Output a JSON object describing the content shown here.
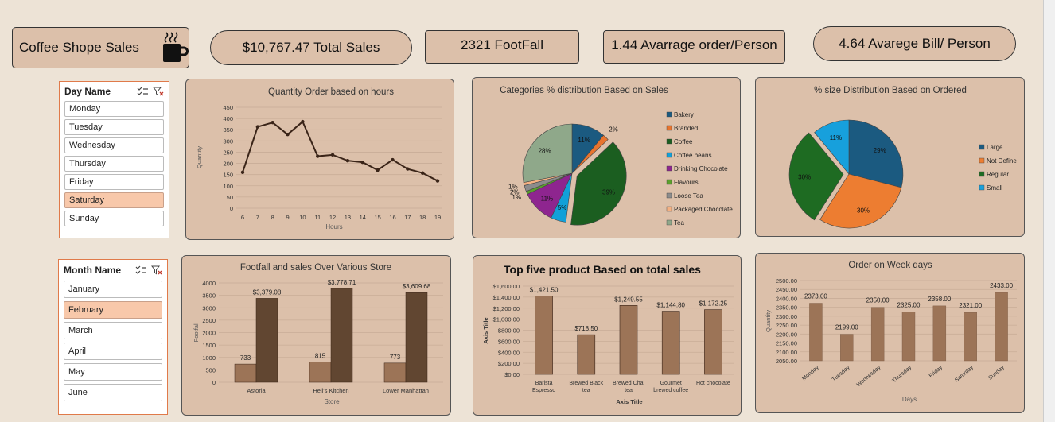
{
  "header": {
    "title": "Coffee Shope Sales",
    "total_sales": "$10,767.47 Total Sales",
    "footfall": "2321  FootFall",
    "avg_order": "1.44  Avarrage order/Person",
    "avg_bill": "4.64 Avarege Bill/ Person"
  },
  "slicer_day": {
    "title": "Day Name",
    "items": [
      "Monday",
      "Tuesday",
      "Wednesday",
      "Thursday",
      "Friday",
      "Saturday",
      "Sunday"
    ],
    "selected": "Saturday"
  },
  "slicer_month": {
    "title": "Month Name",
    "items": [
      "January",
      "February",
      "March",
      "April",
      "May",
      "June"
    ],
    "selected": "February"
  },
  "chart_data": [
    {
      "id": "hours",
      "type": "line",
      "title": "Quantity Order based on hours",
      "xlabel": "Hours",
      "ylabel": "Quantity",
      "x": [
        6,
        7,
        8,
        9,
        10,
        11,
        12,
        13,
        14,
        15,
        16,
        17,
        18,
        19
      ],
      "values": [
        160,
        363,
        382,
        329,
        386,
        232,
        238,
        212,
        205,
        170,
        216,
        175,
        157,
        122
      ],
      "ylim": [
        0,
        450
      ],
      "yticks": [
        0,
        50,
        100,
        150,
        200,
        250,
        300,
        350,
        400,
        450
      ],
      "color": "#3a2418"
    },
    {
      "id": "categories",
      "type": "pie",
      "title": "Categories % distribution Based on Sales",
      "legend_position": "right",
      "slices": [
        {
          "name": "Bakery",
          "value": 11,
          "label": "11%",
          "color": "#1b5a80"
        },
        {
          "name": "Branded",
          "value": 2,
          "label": "2%",
          "color": "#e8742e"
        },
        {
          "name": "Coffee",
          "value": 39,
          "label": "39%",
          "color": "#1b5e20"
        },
        {
          "name": "Coffee beans",
          "value": 5,
          "label": "5%",
          "color": "#12a0d8"
        },
        {
          "name": "Drinking Chocolate",
          "value": 11,
          "label": "11%",
          "color": "#8e258f"
        },
        {
          "name": "Flavours",
          "value": 1,
          "label": "1%",
          "color": "#5aa02c"
        },
        {
          "name": "Loose Tea",
          "value": 2,
          "label": "2%",
          "color": "#8c8c8c"
        },
        {
          "name": "Packaged Chocolate",
          "value": 1,
          "label": "1%",
          "color": "#f4b183"
        },
        {
          "name": "Tea",
          "value": 28,
          "label": "28%",
          "color": "#8fa88a"
        }
      ]
    },
    {
      "id": "size",
      "type": "pie",
      "title": "% size Distribution Based on Ordered",
      "legend_position": "right",
      "slices": [
        {
          "name": "Large",
          "value": 29,
          "label": "29%",
          "color": "#1b5a80"
        },
        {
          "name": "Not Define",
          "value": 30,
          "label": "30%",
          "color": "#ed7d31"
        },
        {
          "name": "Regular",
          "value": 30,
          "label": "30%",
          "color": "#1e6b22"
        },
        {
          "name": "Small",
          "value": 11,
          "label": "11%",
          "color": "#17a0dc"
        }
      ]
    },
    {
      "id": "store",
      "type": "bar",
      "title": "Footfall and sales Over Various Store",
      "xlabel": "Store",
      "ylabel": "Footfall",
      "categories": [
        "Astoria",
        "Hell's Kitchen",
        "Lower Manhattan"
      ],
      "series": [
        {
          "values": [
            733,
            815,
            773
          ],
          "labels": [
            "733",
            "815",
            "773"
          ],
          "color": "#9c7457"
        },
        {
          "values": [
            3379.08,
            3778.71,
            3609.68
          ],
          "labels": [
            "$3,379.08",
            "$3,778.71",
            "$3,609.68"
          ],
          "color": "#614631"
        }
      ],
      "ylim": [
        0,
        4000
      ],
      "yticks": [
        0,
        500,
        1000,
        1500,
        2000,
        2500,
        3000,
        3500,
        4000
      ]
    },
    {
      "id": "products",
      "type": "bar",
      "title": "Top five product Based on total sales",
      "xlabel": "Axis Title",
      "ylabel": "Axis Title",
      "categories": [
        [
          "Barista",
          "Espresso"
        ],
        [
          "Brewed Black",
          "tea"
        ],
        [
          "Brewed Chai",
          "tea"
        ],
        [
          "Gourmet",
          "brewed coffee"
        ],
        [
          "Hot chocolate"
        ]
      ],
      "values": [
        1421.5,
        718.5,
        1249.55,
        1144.8,
        1172.25
      ],
      "labels": [
        "$1,421.50",
        "$718.50",
        "$1,249.55",
        "$1,144.80",
        "$1,172.25"
      ],
      "ylim": [
        0,
        1600
      ],
      "yticks": [
        0,
        200,
        400,
        600,
        800,
        1000,
        1200,
        1400,
        1600
      ],
      "ytick_labels": [
        "$0.00",
        "$200.00",
        "$400.00",
        "$600.00",
        "$800.00",
        "$1,000.00",
        "$1,200.00",
        "$1,400.00",
        "$1,600.00"
      ],
      "color": "#9c7457"
    },
    {
      "id": "weekdays",
      "type": "bar",
      "title": "Order on Week days",
      "xlabel": "Days",
      "ylabel": "Quantity",
      "categories": [
        "Monday",
        "Tuesday",
        "Wednesday",
        "Thursday",
        "Friday",
        "Saturday",
        "Sunday"
      ],
      "values": [
        2373,
        2199,
        2350,
        2325,
        2358,
        2321,
        2433
      ],
      "labels": [
        "2373.00",
        "2199.00",
        "2350.00",
        "2325.00",
        "2358.00",
        "2321.00",
        "2433.00"
      ],
      "ylim": [
        2050,
        2500
      ],
      "yticks": [
        2050,
        2100,
        2150,
        2200,
        2250,
        2300,
        2350,
        2400,
        2450,
        2500
      ],
      "ytick_labels": [
        "2050.00",
        "2100.00",
        "2150.00",
        "2200.00",
        "2250.00",
        "2300.00",
        "2350.00",
        "2400.00",
        "2450.00",
        "2500.00"
      ],
      "color": "#9c7457"
    }
  ]
}
